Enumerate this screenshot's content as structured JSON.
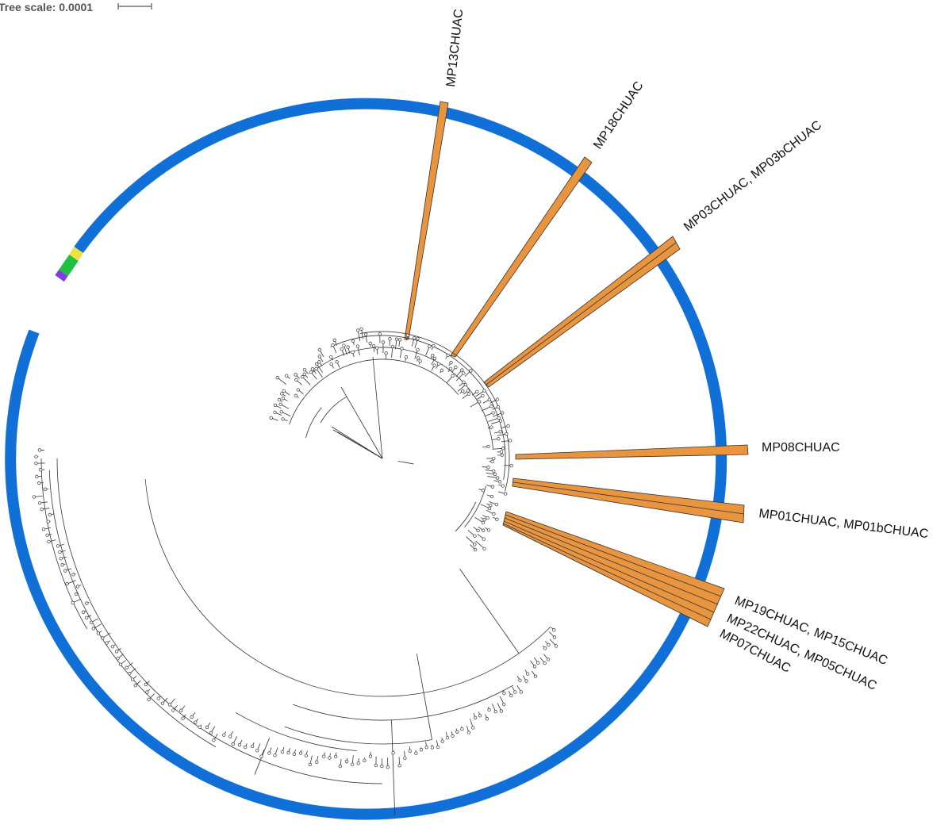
{
  "tree_scale": {
    "label": "Tree scale: 0.0001"
  },
  "colors": {
    "ring": "#1070d8",
    "highlight": "#e99540",
    "ring_yellow": "#f0e040",
    "ring_green": "#20c040",
    "ring_purple": "#8040e0",
    "branch": "#333333"
  },
  "clades": [
    {
      "label": "MP13CHUAC"
    },
    {
      "label": "MP18CHUAC"
    },
    {
      "label": "MP03CHUAC, MP03bCHUAC"
    },
    {
      "label": "MP08CHUAC"
    },
    {
      "label": "MP01CHUAC, MP01bCHUAC"
    },
    {
      "label": "MP19CHUAC, MP15CHUAC"
    },
    {
      "label": "MP22CHUAC, MP05CHUAC"
    },
    {
      "label": "MP07CHUAC"
    }
  ]
}
